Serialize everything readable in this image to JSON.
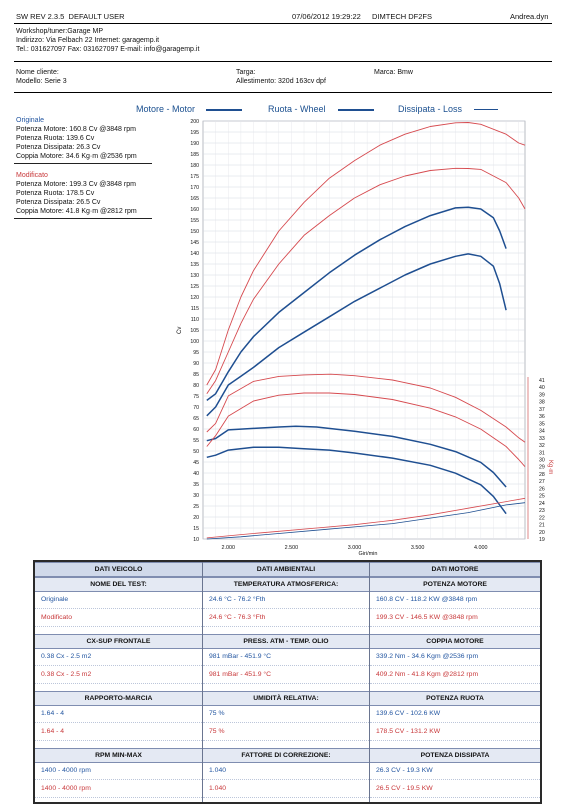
{
  "header": {
    "sw_rev": "SW REV 2.3.5",
    "user": "DEFAULT USER",
    "datetime": "07/06/2012 19:29:22",
    "device": "DIMTECH DF2FS",
    "operator": "Andrea.dyn"
  },
  "workshop": {
    "line1": "Workshop/tuner:Garage MP",
    "line2": "Indirizzo: Via Felbach 22 Internet: garagemp.it",
    "line3": "Tel.: 031627097 Fax: 031627097 E-mail: info@garagemp.it"
  },
  "vehicle": {
    "nome_cliente": "Nome cliente:",
    "modello": "Modello: Serie 3",
    "targa": "Targa:",
    "allestimento": "Allestimento: 320d 163cv dpf",
    "marca": "Marca: Bmw"
  },
  "legend": {
    "motore": "Motore - Motor",
    "ruota": "Ruota - Wheel",
    "dissipata": "Dissipata - Loss"
  },
  "results": {
    "originale": {
      "title": "Originale",
      "lines": [
        "Potenza Motore: 160.8 Cv @3848 rpm",
        "Potenza Ruota: 139.6 Cv",
        "Potenza Dissipata: 26.3 Cv",
        "Coppia Motore: 34.6 Kg·m @2536 rpm"
      ]
    },
    "modificato": {
      "title": "Modificato",
      "lines": [
        "Potenza Motore: 199.3 Cv @3848 rpm",
        "Potenza Ruota: 178.5 Cv",
        "Potenza Dissipata: 26.5 Cv",
        "Coppia Motore: 41.8 Kg·m @2812 rpm"
      ]
    }
  },
  "colors": {
    "blue": "#1f4f91",
    "red": "#d64a4f",
    "grid": "#b8bcc8"
  },
  "chart_data": {
    "type": "line",
    "xlabel": "Giri/min",
    "ylabel": "Cv",
    "ylabel_right": "Kg·m",
    "x_ticks": [
      "2.000",
      "2.500",
      "3.000",
      "3.500",
      "4.000"
    ],
    "xlim": [
      1800,
      4350
    ],
    "ylim_left": [
      10,
      200
    ],
    "y_ticks_left": [
      "10",
      "15",
      "20",
      "25",
      "30",
      "35",
      "40",
      "45",
      "50",
      "55",
      "60",
      "65",
      "70",
      "75",
      "80",
      "85",
      "90",
      "95",
      "100",
      "105",
      "110",
      "115",
      "120",
      "125",
      "130",
      "135",
      "140",
      "145",
      "150",
      "155",
      "160",
      "165",
      "170",
      "175",
      "180",
      "185",
      "190",
      "195",
      "200"
    ],
    "ylim_right": [
      19,
      41
    ],
    "y_ticks_right": [
      "19",
      "20",
      "21",
      "22",
      "23",
      "24",
      "25",
      "26",
      "27",
      "28",
      "29",
      "30",
      "31",
      "32",
      "33",
      "34",
      "35",
      "36",
      "37",
      "38",
      "39",
      "40",
      "41"
    ],
    "series": [
      {
        "name": "Originale",
        "axis": "left",
        "x": [
          1830,
          1900,
          2000,
          2100,
          2200,
          2400,
          2600,
          2800,
          3000,
          3200,
          3400,
          3600,
          3800,
          3900,
          4000,
          4100,
          4150,
          4200
        ],
        "values": [
          73,
          76,
          86,
          95,
          102,
          113,
          122,
          131,
          139,
          146,
          152,
          157,
          160.5,
          160.8,
          160,
          156,
          150,
          142
        ]
      },
      {
        "name": "Originale",
        "axis": "left",
        "x": [
          1830,
          1900,
          2000,
          2100,
          2200,
          2400,
          2600,
          2800,
          3000,
          3200,
          3400,
          3600,
          3800,
          3900,
          4000,
          4100,
          4150,
          4200
        ],
        "values": [
          66,
          70,
          80,
          84,
          88,
          97,
          104,
          111,
          118,
          124,
          130,
          135,
          138.5,
          139.6,
          138.5,
          134,
          126,
          114
        ]
      },
      {
        "name": "Modificato",
        "axis": "left",
        "x": [
          1830,
          1900,
          2000,
          2100,
          2200,
          2400,
          2600,
          2800,
          3000,
          3200,
          3400,
          3600,
          3800,
          3900,
          4000,
          4200,
          4300,
          4350
        ],
        "values": [
          80,
          87,
          105,
          120,
          132,
          150,
          163,
          174,
          182,
          189,
          194,
          197.5,
          199.2,
          199.3,
          198.5,
          194,
          190,
          189
        ]
      },
      {
        "name": "Modificato",
        "axis": "left",
        "x": [
          1830,
          1900,
          2000,
          2100,
          2200,
          2400,
          2600,
          2800,
          3000,
          3200,
          3400,
          3600,
          3800,
          3900,
          4000,
          4200,
          4300,
          4350
        ],
        "values": [
          76,
          82,
          95,
          108,
          119,
          135,
          148,
          157,
          165,
          171,
          175,
          177.5,
          178.5,
          178.4,
          178,
          172,
          165,
          160
        ]
      },
      {
        "name": "Originale",
        "axis": "right",
        "x": [
          1830,
          1900,
          2000,
          2200,
          2400,
          2536,
          2700,
          3000,
          3300,
          3600,
          3800,
          4000,
          4100,
          4200
        ],
        "values": [
          32.6,
          32.9,
          34.1,
          34.3,
          34.5,
          34.6,
          34.5,
          33.9,
          33.2,
          32.1,
          31.1,
          29.6,
          28.2,
          26.2
        ]
      },
      {
        "name": "Originale",
        "axis": "right",
        "x": [
          1830,
          1900,
          2000,
          2200,
          2400,
          2600,
          2800,
          3000,
          3300,
          3600,
          3800,
          4000,
          4100,
          4200
        ],
        "values": [
          30.3,
          30.6,
          31.3,
          31.7,
          31.7,
          31.5,
          31.3,
          30.9,
          30.2,
          29.2,
          28.1,
          26.5,
          24.9,
          22.5
        ]
      },
      {
        "name": "Modificato",
        "axis": "right",
        "x": [
          1830,
          1900,
          2000,
          2200,
          2400,
          2600,
          2812,
          3000,
          3300,
          3600,
          3800,
          4000,
          4200,
          4300,
          4350
        ],
        "values": [
          33.8,
          35.0,
          38.8,
          40.8,
          41.5,
          41.7,
          41.8,
          41.6,
          41.0,
          39.9,
          38.6,
          36.8,
          34.5,
          33.0,
          32.4
        ]
      },
      {
        "name": "Modificato",
        "axis": "right",
        "x": [
          1830,
          1900,
          2000,
          2200,
          2400,
          2600,
          2800,
          3000,
          3300,
          3600,
          3800,
          4000,
          4200,
          4300,
          4350
        ],
        "values": [
          31.8,
          33.3,
          36.0,
          38.1,
          38.9,
          39.2,
          39.2,
          39.0,
          38.3,
          37.1,
          35.9,
          34.2,
          31.8,
          30.0,
          29.0
        ]
      },
      {
        "name": "Dissipata",
        "axis": "left",
        "x": [
          1830,
          2100,
          2400,
          2700,
          3000,
          3300,
          3600,
          3900,
          4200,
          4350
        ],
        "values": [
          10.5,
          12,
          13.5,
          15,
          16.5,
          18.5,
          21,
          24,
          27,
          28.5
        ]
      },
      {
        "name": "Dissipata",
        "axis": "left",
        "x": [
          1830,
          2100,
          2400,
          2700,
          3000,
          3300,
          3600,
          3900,
          4200,
          4350
        ],
        "values": [
          10,
          11,
          12.5,
          14,
          15.5,
          17,
          19.5,
          22,
          25.5,
          26.5
        ]
      }
    ],
    "grid": true
  },
  "table": {
    "col_headers": [
      "DATI VEICOLO",
      "DATI AMBIENTALI",
      "DATI MOTORE"
    ],
    "sections": [
      {
        "labels": [
          "NOME DEL TEST:",
          "TEMPERATURA ATMOSFERICA:",
          "POTENZA MOTORE"
        ],
        "rows": [
          [
            "Originale",
            "24.6 °C - 76.2 °Fth",
            "160.8 CV - 118.2 KW  @3848 rpm"
          ],
          [
            "Modificato",
            "24.6 °C - 76.3 °Fth",
            "199.3 CV - 146.5 KW  @3848 rpm"
          ]
        ]
      },
      {
        "labels": [
          "CX-SUP FRONTALE",
          "PRESS. ATM - TEMP. OLIO",
          "COPPIA MOTORE"
        ],
        "rows": [
          [
            "0.38 Cx - 2.5 m2",
            "981 mBar - 451.9 °C",
            "339.2 Nm - 34.6 Kgm  @2536 rpm"
          ],
          [
            "0.38 Cx - 2.5 m2",
            "981 mBar - 451.9 °C",
            "409.2 Nm - 41.8 Kgm  @2812 rpm"
          ]
        ]
      },
      {
        "labels": [
          "RAPPORTO-MARCIA",
          "UMIDITÀ RELATIVA:",
          "POTENZA RUOTA"
        ],
        "rows": [
          [
            "1.64 - 4",
            "75 %",
            "139.6 CV - 102.6 KW"
          ],
          [
            "1.64 - 4",
            "75 %",
            "178.5 CV - 131.2 KW"
          ]
        ]
      },
      {
        "labels": [
          "RPM MIN-MAX",
          "FATTORE DI CORREZIONE:",
          "POTENZA DISSIPATA"
        ],
        "rows": [
          [
            "1400 - 4000 rpm",
            "1.040",
            "26.3 CV - 19.3 KW"
          ],
          [
            "1400 - 4000 rpm",
            "1.040",
            "26.5 CV - 19.5 KW"
          ]
        ]
      }
    ]
  }
}
